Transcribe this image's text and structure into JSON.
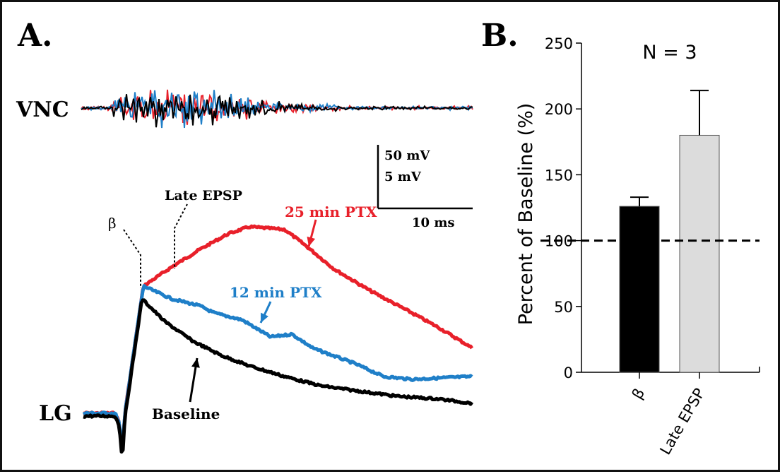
{
  "panels": {
    "a_label": "A.",
    "b_label": "B."
  },
  "traces": {
    "vnc_label": "VNC",
    "lg_label": "LG",
    "beta_label": "β",
    "late_epsp_label": "Late EPSP",
    "ptx25_label": "25 min PTX",
    "ptx12_label": "12 min PTX",
    "baseline_label": "Baseline",
    "colors": {
      "ptx25": "#e8202a",
      "ptx12": "#1f7fc8",
      "baseline": "#000000"
    }
  },
  "scalebar": {
    "v1": "50 mV",
    "v2": "5 mV",
    "t": "10 ms"
  },
  "chart_data": {
    "type": "bar",
    "title": "N = 3",
    "ylabel": "Percent of Baseline (%)",
    "categories": [
      "β",
      "Late EPSP"
    ],
    "values": [
      126,
      180
    ],
    "errors": [
      7,
      34
    ],
    "bar_colors": [
      "#000000",
      "#dcdcdc"
    ],
    "ylim": [
      0,
      250
    ],
    "yticks": [
      0,
      50,
      100,
      150,
      200,
      250
    ],
    "reference_line": 100,
    "grid": false
  }
}
